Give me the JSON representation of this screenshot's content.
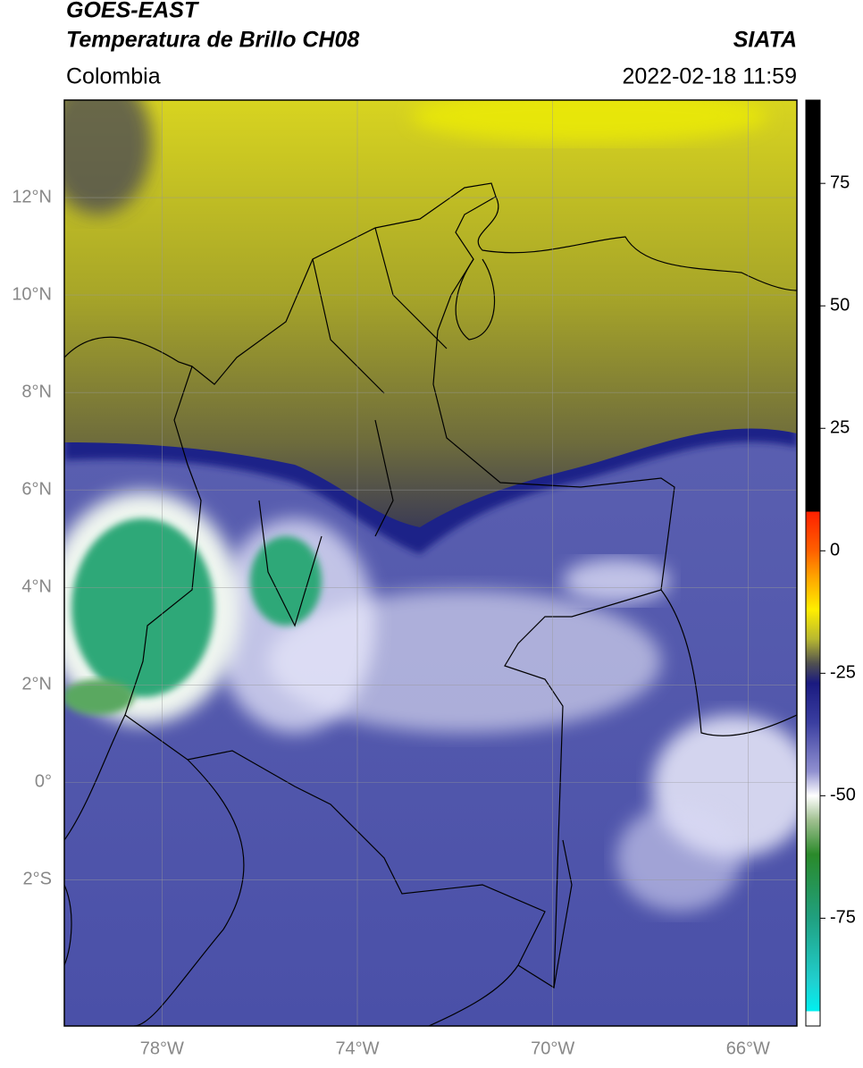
{
  "header": {
    "title": "GOES-EAST",
    "subtitle": "Temperatura de Brillo CH08",
    "source": "SIATA",
    "region": "Colombia",
    "datetime": "2022-02-18 11:59"
  },
  "map": {
    "xlim": [
      -80,
      -65
    ],
    "ylim": [
      -5,
      14
    ],
    "grid": true,
    "xticks": [
      {
        "value": -78,
        "label": "78°W"
      },
      {
        "value": -74,
        "label": "74°W"
      },
      {
        "value": -70,
        "label": "70°W"
      },
      {
        "value": -66,
        "label": "66°W"
      }
    ],
    "yticks": [
      {
        "value": 12,
        "label": "12°N"
      },
      {
        "value": 10,
        "label": "10°N"
      },
      {
        "value": 8,
        "label": "8°N"
      },
      {
        "value": 6,
        "label": "6°N"
      },
      {
        "value": 4,
        "label": "4°N"
      },
      {
        "value": 2,
        "label": "2°N"
      },
      {
        "value": 0,
        "label": "0°"
      },
      {
        "value": -2,
        "label": "2°S"
      }
    ]
  },
  "colorbar": {
    "lim": [
      -97,
      92
    ],
    "ticks": [
      75,
      50,
      25,
      0,
      -25,
      -50,
      -75
    ],
    "stops": [
      {
        "value": 92,
        "color": "#000000"
      },
      {
        "value": 8,
        "color": "#000000"
      },
      {
        "value": 8,
        "color": "#ff2000"
      },
      {
        "value": 0,
        "color": "#ff6000"
      },
      {
        "value": -5,
        "color": "#ffa000"
      },
      {
        "value": -12,
        "color": "#ffee00"
      },
      {
        "value": -18,
        "color": "#b8b830"
      },
      {
        "value": -23,
        "color": "#505050"
      },
      {
        "value": -27,
        "color": "#1a1a80"
      },
      {
        "value": -35,
        "color": "#3a3ea0"
      },
      {
        "value": -45,
        "color": "#9090d0"
      },
      {
        "value": -50,
        "color": "#ffffff"
      },
      {
        "value": -55,
        "color": "#a0c090"
      },
      {
        "value": -62,
        "color": "#2a8a2a"
      },
      {
        "value": -75,
        "color": "#20a080"
      },
      {
        "value": -88,
        "color": "#20d0d0"
      },
      {
        "value": -94,
        "color": "#00f0f0"
      },
      {
        "value": -94,
        "color": "#ffffff"
      },
      {
        "value": -97,
        "color": "#ffffff"
      }
    ]
  }
}
